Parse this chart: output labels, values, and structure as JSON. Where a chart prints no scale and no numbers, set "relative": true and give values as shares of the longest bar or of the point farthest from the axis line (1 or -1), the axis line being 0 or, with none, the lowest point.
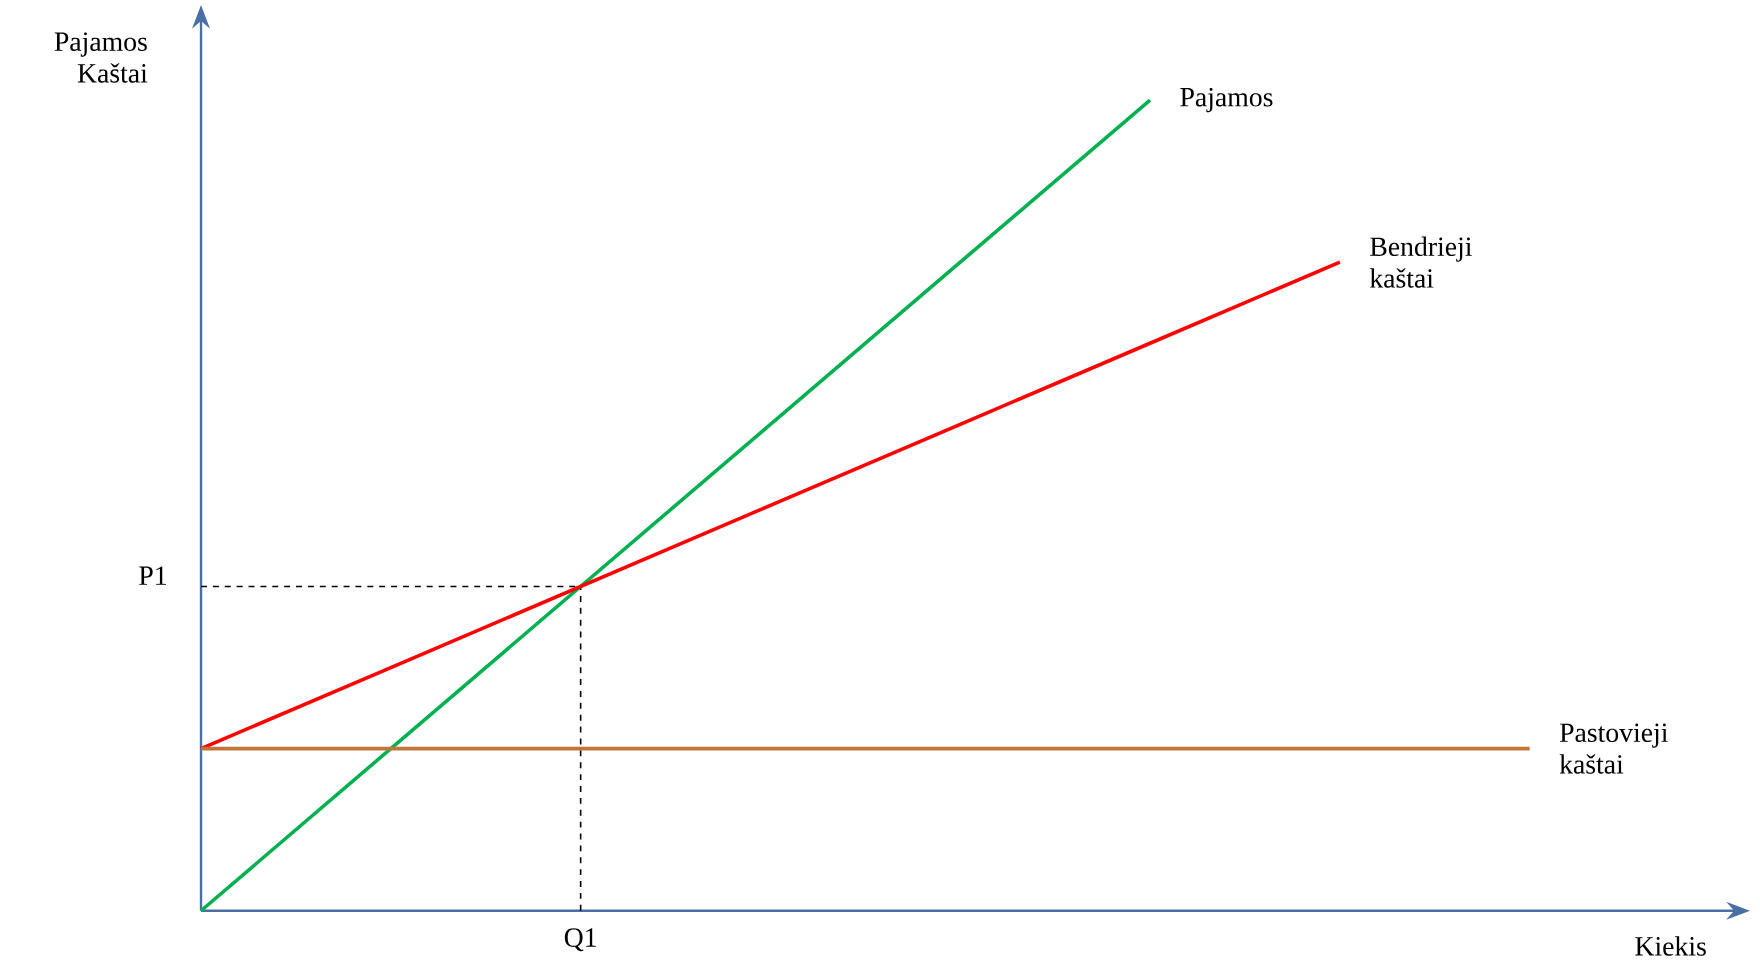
{
  "chart_data": {
    "type": "line",
    "relative": true,
    "xlabel": "Kiekis",
    "ylabel": "Pajamos Kaštai",
    "marker": "none",
    "categories": [
      null,
      null,
      null,
      null,
      null,
      null,
      null,
      null,
      null
    ],
    "ref_lines": [
      {
        "axis": "y",
        "value": 0.4,
        "label": "P1",
        "color": "#000000",
        "line_style": "dashed"
      }
    ],
    "annotations": [
      "Q1"
    ],
    "series": [
      {
        "name": "Pajamos",
        "color": "#00b050",
        "values": [
          0,
          0.2,
          0.4,
          0.6,
          0.8,
          1,
          null,
          null,
          null
        ]
      },
      {
        "name": "Bendrieji kaštai",
        "color": "#ff0000",
        "values": [
          0.2,
          0.3,
          0.4,
          0.5,
          0.6,
          0.7,
          0.8,
          null,
          null
        ]
      },
      {
        "name": "Pastovieji kaštai",
        "color": "#c0763a",
        "values": [
          0.2,
          0.2,
          0.2,
          0.2,
          0.2,
          0.2,
          0.2,
          0.2,
          null
        ]
      }
    ]
  }
}
